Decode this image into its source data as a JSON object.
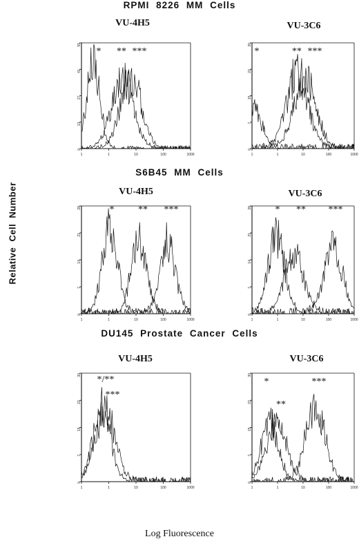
{
  "figure": {
    "ylabel": "Relative Cell Number",
    "xlabel": "Log Fluorescence"
  },
  "sections": [
    {
      "title": "RPMI 8226 MM Cells"
    },
    {
      "title": "S6B45 MM Cells"
    },
    {
      "title": "DU145 Prostate Cancer Cells"
    }
  ],
  "chart_data": [
    {
      "type": "line",
      "title": "VU-4H5",
      "section": "RPMI 8226 MM Cells",
      "x_scale": "log",
      "xlim": [
        0.1,
        1000
      ],
      "x_ticks": [
        "1",
        "1",
        "10",
        "100",
        "1000"
      ],
      "y_ticks": [
        "0",
        "13",
        "27",
        "41",
        "55"
      ],
      "ylim": [
        0,
        55
      ],
      "series": [
        {
          "label": "*",
          "peak_x": 0.27,
          "peak_y": 44,
          "width": 0.24
        },
        {
          "label": "**",
          "peak_x": 3.2,
          "peak_y": 36,
          "width": 0.4
        },
        {
          "label": "***",
          "peak_x": 6.5,
          "peak_y": 37,
          "width": 0.38
        }
      ]
    },
    {
      "type": "line",
      "title": "VU-3C6",
      "section": "RPMI 8226 MM Cells",
      "x_scale": "log",
      "xlim": [
        0.1,
        1000
      ],
      "x_ticks": [
        "1",
        "1",
        "10",
        "100",
        "1000"
      ],
      "y_ticks": [
        "0",
        "7",
        "15",
        "22",
        "30"
      ],
      "ylim": [
        0,
        30
      ],
      "series": [
        {
          "label": "*",
          "peak_x": 0.1,
          "peak_y": 12,
          "width": 0.35
        },
        {
          "label": "**",
          "peak_x": 6,
          "peak_y": 21,
          "width": 0.42
        },
        {
          "label": "***",
          "peak_x": 12,
          "peak_y": 20,
          "width": 0.42
        }
      ]
    },
    {
      "type": "line",
      "title": "VU-4H5",
      "section": "S6B45 MM Cells",
      "x_scale": "log",
      "xlim": [
        0.1,
        1000
      ],
      "x_ticks": [
        "1",
        "1",
        "10",
        "100",
        "1000"
      ],
      "y_ticks": [
        "0",
        "7",
        "14",
        "21",
        "28"
      ],
      "ylim": [
        0,
        28
      ],
      "series": [
        {
          "label": "*",
          "peak_x": 1.1,
          "peak_y": 22,
          "width": 0.28
        },
        {
          "label": "**",
          "peak_x": 13,
          "peak_y": 19,
          "width": 0.28
        },
        {
          "label": "***",
          "peak_x": 145,
          "peak_y": 18,
          "width": 0.28
        }
      ]
    },
    {
      "type": "line",
      "title": "VU-3C6",
      "section": "S6B45 MM Cells",
      "x_scale": "log",
      "xlim": [
        0.1,
        1000
      ],
      "x_ticks": [
        "1",
        "1",
        "10",
        "100",
        "1000"
      ],
      "y_ticks": [
        "0",
        "7",
        "14",
        "21",
        "28"
      ],
      "ylim": [
        0,
        28
      ],
      "series": [
        {
          "label": "*",
          "peak_x": 0.9,
          "peak_y": 20,
          "width": 0.32
        },
        {
          "label": "**",
          "peak_x": 4.5,
          "peak_y": 15,
          "width": 0.38
        },
        {
          "label": "***",
          "peak_x": 150,
          "peak_y": 17,
          "width": 0.36
        }
      ]
    },
    {
      "type": "line",
      "title": "VU-4H5",
      "section": "DU145 Prostate Cancer Cells",
      "x_scale": "log",
      "xlim": [
        0.1,
        1000
      ],
      "x_ticks": [
        "1",
        "1",
        "10",
        "100",
        "1000"
      ],
      "y_ticks": [
        "0",
        "7",
        "15",
        "22",
        "30"
      ],
      "ylim": [
        0,
        30
      ],
      "series": [
        {
          "label": "*/**",
          "peak_x": 0.55,
          "peak_y": 20,
          "width": 0.32
        },
        {
          "label": "***",
          "peak_x": 0.75,
          "peak_y": 19,
          "width": 0.36
        }
      ]
    },
    {
      "type": "line",
      "title": "VU-3C6",
      "section": "DU145 Prostate Cancer Cells",
      "x_scale": "log",
      "xlim": [
        0.1,
        1000
      ],
      "x_ticks": [
        "1",
        "1",
        "10",
        "100",
        "1000"
      ],
      "y_ticks": [
        "0",
        "7",
        "15",
        "22",
        "30"
      ],
      "ylim": [
        0,
        30
      ],
      "series": [
        {
          "label": "*",
          "peak_x": 0.5,
          "peak_y": 17,
          "width": 0.32
        },
        {
          "label": "**",
          "peak_x": 0.9,
          "peak_y": 15,
          "width": 0.4
        },
        {
          "label": "***",
          "peak_x": 30,
          "peak_y": 20,
          "width": 0.38
        }
      ]
    }
  ]
}
